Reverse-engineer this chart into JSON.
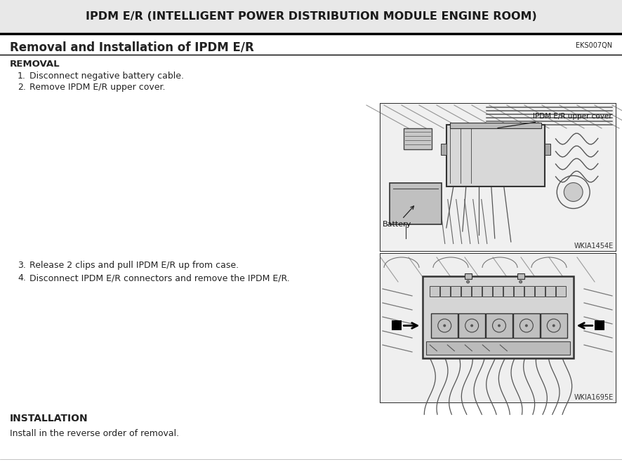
{
  "title": "IPDM E/R (INTELLIGENT POWER DISTRIBUTION MODULE ENGINE ROOM)",
  "section_title": "Removal and Installation of IPDM E/R",
  "ref_code": "EKS007QN",
  "subsection_removal": "REMOVAL",
  "steps": [
    "Disconnect negative battery cable.",
    "Remove IPDM E/R upper cover.",
    "Release 2 clips and pull IPDM E/R up from case.",
    "Disconnect IPDM E/R connectors and remove the IPDM E/R."
  ],
  "subsection_installation": "INSTALLATION",
  "install_text": "Install in the reverse order of removal.",
  "diagram1_label": "WKIA1454E",
  "diagram1_ann1": "IPDM E/R upper cover",
  "diagram1_ann2": "Battery",
  "diagram2_label": "WKIA1695E",
  "bg_color": "#ffffff",
  "title_text_color": "#1a1a1a",
  "body_text_color": "#222222",
  "box_border_color": "#333333",
  "sketch_color": "#444444",
  "title_bg": "#e8e8e8"
}
